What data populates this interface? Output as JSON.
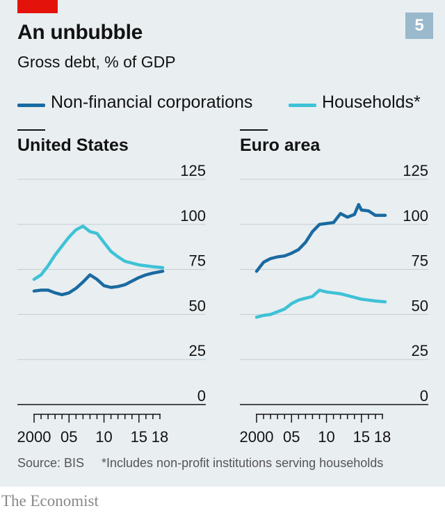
{
  "header": {
    "title": "An unbubble",
    "subtitle": "Gross debt, % of GDP",
    "chart_number": "5",
    "accent_color": "#e3120b",
    "number_badge_color": "#9ab9cc"
  },
  "legend": {
    "corporations": "Non-financial corporations",
    "households": "Households*"
  },
  "footer": {
    "source": "Source: BIS",
    "footnote": "*Includes non-profit institutions serving households",
    "publisher": "The Economist"
  },
  "chart_data": [
    {
      "type": "line",
      "title": "United States",
      "ylim": [
        0,
        125
      ],
      "yticks": [
        0,
        25,
        50,
        75,
        100,
        125
      ],
      "xlim": [
        1999.5,
        2018.6
      ],
      "xtick_labels": [
        {
          "value": 2000,
          "label": "2000"
        },
        {
          "value": 2005,
          "label": "05"
        },
        {
          "value": 2010,
          "label": "10"
        },
        {
          "value": 2015,
          "label": "15"
        },
        {
          "value": 2018,
          "label": "18"
        }
      ],
      "grid": true,
      "series": [
        {
          "name": "Non-financial corporations",
          "color": "#1a6aa0",
          "x": [
            2000,
            2001,
            2002,
            2003,
            2004,
            2005,
            2006,
            2007,
            2008,
            2009,
            2010,
            2011,
            2012,
            2013,
            2014,
            2015,
            2016,
            2017,
            2018.4
          ],
          "values": [
            63,
            63.5,
            63.5,
            62,
            61,
            62,
            64.5,
            68,
            72,
            69.5,
            66,
            65,
            65.5,
            66.5,
            68.5,
            70.5,
            72,
            73,
            74
          ]
        },
        {
          "name": "Households*",
          "color": "#3ec2d6",
          "x": [
            2000,
            2001,
            2002,
            2003,
            2004,
            2005,
            2006,
            2007,
            2008,
            2009,
            2010,
            2011,
            2012,
            2013,
            2014,
            2015,
            2016,
            2017,
            2018.4
          ],
          "values": [
            69.5,
            72,
            77,
            83,
            88,
            93,
            97,
            99,
            96,
            95,
            90,
            85,
            82,
            79.5,
            78.5,
            77.5,
            77,
            76.5,
            76
          ]
        }
      ]
    },
    {
      "type": "line",
      "title": "Euro area",
      "ylim": [
        0,
        125
      ],
      "yticks": [
        0,
        25,
        50,
        75,
        100,
        125
      ],
      "xlim": [
        1999.5,
        2018.6
      ],
      "xtick_labels": [
        {
          "value": 2000,
          "label": "2000"
        },
        {
          "value": 2005,
          "label": "05"
        },
        {
          "value": 2010,
          "label": "10"
        },
        {
          "value": 2015,
          "label": "15"
        },
        {
          "value": 2018,
          "label": "18"
        }
      ],
      "grid": true,
      "series": [
        {
          "name": "Non-financial corporations",
          "color": "#1a6aa0",
          "x": [
            2000,
            2001,
            2002,
            2003,
            2004,
            2005,
            2006,
            2007,
            2008,
            2009,
            2010,
            2011,
            2012,
            2013,
            2014,
            2014.6,
            2015,
            2016,
            2017,
            2018.4
          ],
          "values": [
            74,
            79,
            81,
            82,
            82.5,
            84,
            86,
            90,
            96,
            100,
            100.5,
            101,
            106,
            104,
            105.5,
            111,
            108,
            107.5,
            105,
            105
          ]
        },
        {
          "name": "Households*",
          "color": "#3ec2d6",
          "x": [
            2000,
            2001,
            2002,
            2003,
            2004,
            2005,
            2006,
            2007,
            2008,
            2009,
            2010,
            2011,
            2012,
            2013,
            2014,
            2015,
            2016,
            2017,
            2018.4
          ],
          "values": [
            48.5,
            49.5,
            50,
            51.5,
            53,
            56,
            58,
            59,
            60,
            63.5,
            62.5,
            62,
            61.5,
            60.5,
            59.5,
            58.5,
            58,
            57.5,
            57
          ]
        }
      ]
    }
  ]
}
